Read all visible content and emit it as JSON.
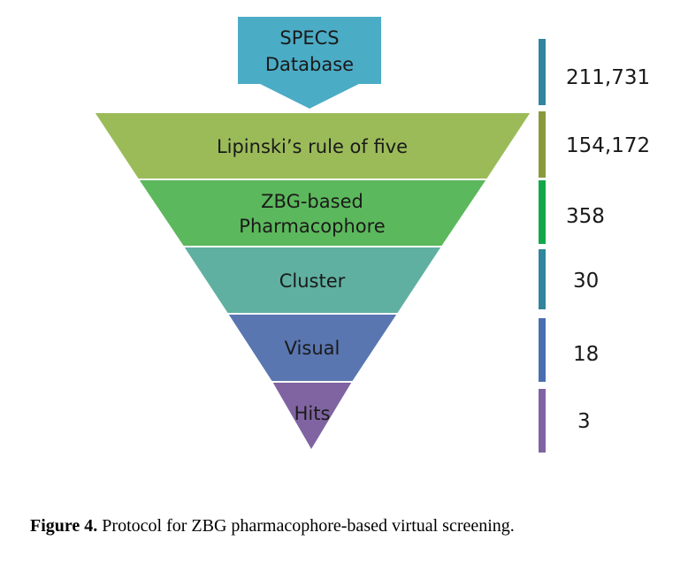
{
  "source": {
    "line1": "SPECS",
    "line2": "Database",
    "color": "#4bacc6"
  },
  "stages": [
    {
      "label": "Lipinski’s rule of five",
      "color": "#9bbb59",
      "count": "211,731",
      "bar_color": "#31859c"
    },
    {
      "label_line1": "ZBG-based",
      "label_line2": "Pharmacophore",
      "color": "#5cb85c",
      "count": "154,172",
      "bar_color": "#8a9a3b"
    },
    {
      "label": "Cluster",
      "color": "#5fb0a0",
      "count": "358",
      "bar_color": "#12a84a"
    },
    {
      "label": "Visual",
      "color": "#5a76b0",
      "count": "30",
      "bar_color": "#31859c"
    },
    {
      "label": "Hits",
      "color": "#8064a2",
      "count": "18",
      "bar_color": "#4a6fb0"
    },
    {
      "count": "3",
      "bar_color": "#8064a2"
    }
  ],
  "caption": {
    "bold": "Figure 4.",
    "text": " Protocol for ZBG pharmacophore-based virtual screening."
  }
}
